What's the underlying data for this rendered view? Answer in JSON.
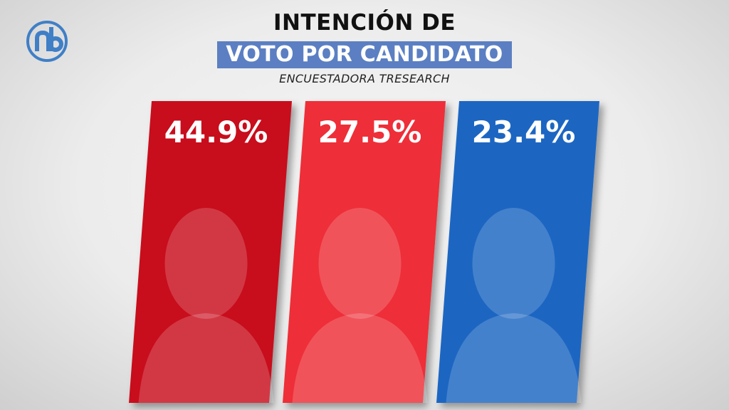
{
  "header": {
    "title_line1": "INTENCIÓN DE",
    "title_line2": "VOTO POR CANDIDATO",
    "subtitle": "ENCUESTADORA TRESEARCH"
  },
  "logo": {
    "icon": "nb-logo-icon",
    "color": "#3f7fc6"
  },
  "chart_data": {
    "type": "bar",
    "title": "INTENCIÓN DE VOTO POR CANDIDATO",
    "subtitle": "ENCUESTADORA TRESEARCH",
    "categories": [
      "",
      "",
      ""
    ],
    "values": [
      44.9,
      27.5,
      23.4
    ],
    "labels": [
      "44.9%",
      "27.5%",
      "23.4%"
    ],
    "colors": [
      "#c8101b",
      "#ee2f37",
      "#1f66c2"
    ],
    "grid": false,
    "legend": "none"
  }
}
